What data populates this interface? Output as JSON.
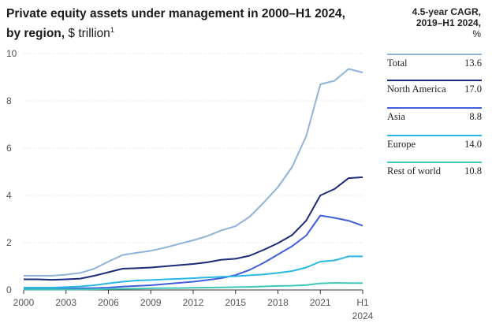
{
  "title": {
    "main": "Private equity assets under management in 2000–H1 2024,",
    "line2_bold": "by region,",
    "unit": "$ trillion",
    "footnote_mark": "1"
  },
  "panel": {
    "header_line1": "4.5-year CAGR,",
    "header_line2": "2019–H1 2024,",
    "header_unit": "%",
    "rows": [
      {
        "name": "Total",
        "value": "13.6",
        "color": "#8fb3d9"
      },
      {
        "name": "North America",
        "value": "17.0",
        "color": "#1b2a7a"
      },
      {
        "name": "Asia",
        "value": "8.8",
        "color": "#3f5ee0"
      },
      {
        "name": "Europe",
        "value": "14.0",
        "color": "#29b8e6"
      },
      {
        "name": "Rest of world",
        "value": "10.8",
        "color": "#3fc8b8"
      }
    ]
  },
  "chart_data": {
    "type": "line",
    "ylim": [
      0,
      10
    ],
    "yticks": [
      "0",
      "2",
      "4",
      "6",
      "8",
      "10"
    ],
    "x": [
      2000,
      2001,
      2002,
      2003,
      2004,
      2005,
      2006,
      2007,
      2008,
      2009,
      2010,
      2011,
      2012,
      2013,
      2014,
      2015,
      2016,
      2017,
      2018,
      2019,
      2020,
      2021,
      2022,
      2023,
      2024
    ],
    "xtick_labels": [
      {
        "x": 2000,
        "label": "2000"
      },
      {
        "x": 2003,
        "label": "2003"
      },
      {
        "x": 2006,
        "label": "2006"
      },
      {
        "x": 2009,
        "label": "2009"
      },
      {
        "x": 2012,
        "label": "2012"
      },
      {
        "x": 2015,
        "label": "2015"
      },
      {
        "x": 2018,
        "label": "2018"
      },
      {
        "x": 2021,
        "label": "2021"
      },
      {
        "x": 2024,
        "label": "H1",
        "label2": "2024"
      }
    ],
    "grid": true,
    "series": [
      {
        "name": "Total",
        "color": "#8fb3d9",
        "values": [
          0.6,
          0.6,
          0.6,
          0.65,
          0.72,
          0.9,
          1.2,
          1.48,
          1.57,
          1.66,
          1.79,
          1.95,
          2.1,
          2.28,
          2.52,
          2.7,
          3.1,
          3.7,
          4.35,
          5.2,
          6.5,
          8.7,
          8.85,
          9.35,
          9.2
        ]
      },
      {
        "name": "North America",
        "color": "#1b2a7a",
        "values": [
          0.45,
          0.45,
          0.43,
          0.45,
          0.48,
          0.6,
          0.75,
          0.9,
          0.92,
          0.95,
          1.0,
          1.05,
          1.1,
          1.17,
          1.28,
          1.32,
          1.45,
          1.7,
          1.98,
          2.32,
          2.93,
          4.0,
          4.27,
          4.73,
          4.77
        ]
      },
      {
        "name": "Asia",
        "color": "#3f5ee0",
        "values": [
          0.05,
          0.05,
          0.05,
          0.06,
          0.07,
          0.08,
          0.1,
          0.14,
          0.17,
          0.2,
          0.25,
          0.3,
          0.35,
          0.42,
          0.5,
          0.63,
          0.85,
          1.15,
          1.5,
          1.85,
          2.3,
          3.15,
          3.05,
          2.93,
          2.72
        ]
      },
      {
        "name": "Europe",
        "color": "#29b8e6",
        "values": [
          0.1,
          0.1,
          0.1,
          0.12,
          0.15,
          0.2,
          0.28,
          0.35,
          0.4,
          0.42,
          0.45,
          0.47,
          0.5,
          0.53,
          0.56,
          0.58,
          0.62,
          0.66,
          0.72,
          0.8,
          0.95,
          1.2,
          1.25,
          1.42,
          1.42
        ]
      },
      {
        "name": "Rest of world",
        "color": "#3fc8b8",
        "values": [
          0.02,
          0.02,
          0.02,
          0.02,
          0.02,
          0.03,
          0.04,
          0.05,
          0.06,
          0.07,
          0.08,
          0.08,
          0.09,
          0.1,
          0.11,
          0.12,
          0.13,
          0.15,
          0.17,
          0.18,
          0.21,
          0.28,
          0.3,
          0.29,
          0.29
        ]
      }
    ]
  }
}
